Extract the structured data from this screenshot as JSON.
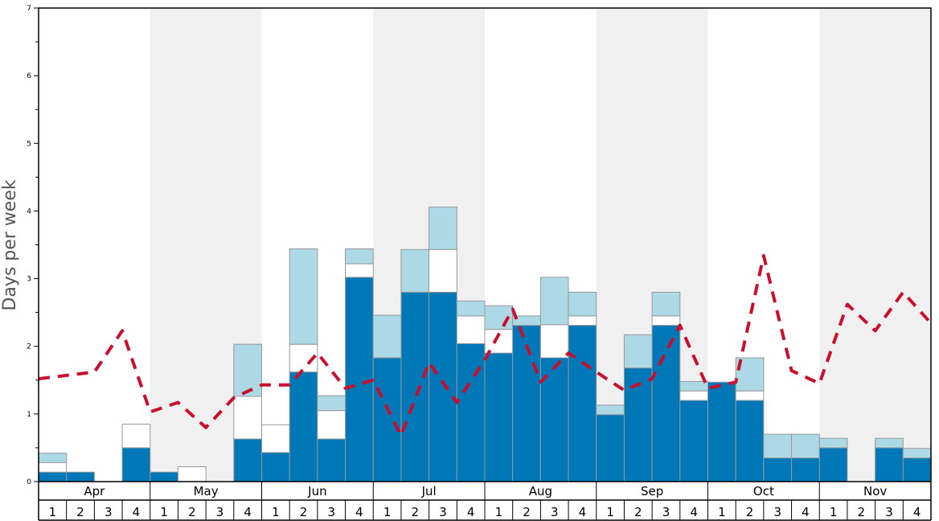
{
  "chart_data": {
    "type": "bar",
    "ylabel": "Days per week",
    "ylim": [
      0,
      7
    ],
    "yticks": [
      "0",
      "1",
      "2",
      "3",
      "4",
      "5",
      "6",
      "7"
    ],
    "months": [
      "Apr",
      "May",
      "Jun",
      "Jul",
      "Aug",
      "Sep",
      "Oct",
      "Nov"
    ],
    "weeks": [
      "1",
      "2",
      "3",
      "4"
    ],
    "stacking": "stacked",
    "grid": false,
    "colors": {
      "dark": "#0077b6",
      "white": "#ffffff",
      "light": "#add8e6",
      "line": "#c8102e",
      "band": "#f0f0f0",
      "bar_edge": "#999999"
    },
    "series": [
      {
        "color": "#0077b6",
        "values": [
          0.14,
          0.14,
          0,
          0.5,
          0.14,
          0,
          0,
          0.63,
          0.43,
          1.62,
          0.63,
          3.02,
          1.83,
          2.8,
          2.8,
          2.04,
          1.9,
          2.31,
          1.83,
          2.31,
          0.99,
          1.68,
          2.31,
          1.2,
          1.47,
          1.2,
          0.35,
          0.35,
          0.5,
          0,
          0.5,
          0.35
        ]
      },
      {
        "color": "#ffffff",
        "values": [
          0.14,
          0,
          0,
          0.35,
          0,
          0.22,
          0,
          0.63,
          0.41,
          0.41,
          0.42,
          0.2,
          0,
          0,
          0.63,
          0.41,
          0.35,
          0,
          0.49,
          0.14,
          0,
          0,
          0.14,
          0.14,
          0,
          0.14,
          0,
          0,
          0,
          0,
          0,
          0
        ]
      },
      {
        "color": "#add8e6",
        "values": [
          0.14,
          0,
          0,
          0,
          0,
          0,
          0,
          0.77,
          0,
          1.41,
          0.22,
          0.22,
          0.63,
          0.63,
          0.63,
          0.22,
          0.35,
          0.14,
          0.7,
          0.35,
          0.14,
          0.49,
          0.35,
          0.14,
          0,
          0.49,
          0.35,
          0.35,
          0.14,
          0,
          0.14,
          0.14
        ]
      }
    ],
    "line": {
      "color": "#c8102e",
      "style": "dashed",
      "values": [
        1.52,
        1.57,
        1.62,
        2.23,
        1.03,
        1.17,
        0.8,
        1.24,
        1.43,
        1.43,
        1.9,
        1.38,
        1.5,
        0.68,
        1.76,
        1.17,
        1.8,
        2.55,
        1.47,
        1.9,
        1.62,
        1.35,
        1.52,
        2.31,
        1.38,
        1.47,
        3.34,
        1.64,
        1.45,
        2.62,
        2.23,
        2.8,
        2.34
      ]
    }
  }
}
